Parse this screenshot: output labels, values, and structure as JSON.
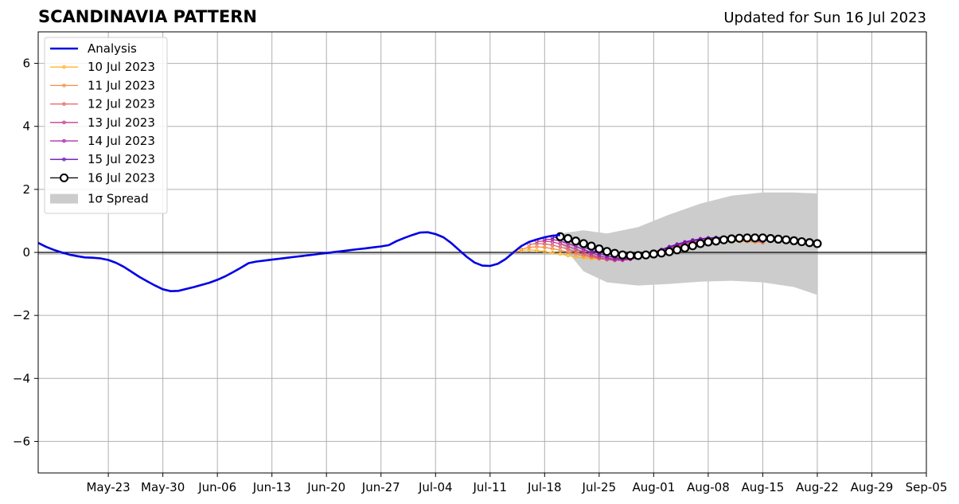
{
  "chart_data": {
    "type": "line",
    "title": "SCANDINAVIA PATTERN",
    "subtitle": "Updated for Sun 16 Jul 2023",
    "xlabel": "",
    "ylabel": "",
    "xlim": [
      "2023-05-14",
      "2023-09-05"
    ],
    "ylim": [
      -7,
      7
    ],
    "grid": true,
    "legend_position": "upper-left",
    "x_ticks": [
      "May-23",
      "May-30",
      "Jun-06",
      "Jun-13",
      "Jun-20",
      "Jun-27",
      "Jul-04",
      "Jul-11",
      "Jul-18",
      "Jul-25",
      "Aug-01",
      "Aug-08",
      "Aug-15",
      "Aug-22",
      "Aug-29",
      "Sep-05"
    ],
    "y_ticks": [
      "6",
      "4",
      "2",
      "0",
      "−2",
      "−4",
      "−6"
    ],
    "y_tick_values": [
      6,
      4,
      2,
      0,
      -2,
      -4,
      -6
    ],
    "analysis": {
      "name": "Analysis",
      "color": "#0000e6",
      "points": [
        [
          "2023-05-14",
          0.3
        ],
        [
          "2023-05-15",
          0.18
        ],
        [
          "2023-05-16",
          0.08
        ],
        [
          "2023-05-17",
          0.0
        ],
        [
          "2023-05-18",
          -0.07
        ],
        [
          "2023-05-19",
          -0.12
        ],
        [
          "2023-05-20",
          -0.16
        ],
        [
          "2023-05-21",
          -0.17
        ],
        [
          "2023-05-22",
          -0.19
        ],
        [
          "2023-05-23",
          -0.24
        ],
        [
          "2023-05-24",
          -0.33
        ],
        [
          "2023-05-25",
          -0.46
        ],
        [
          "2023-05-26",
          -0.62
        ],
        [
          "2023-05-27",
          -0.78
        ],
        [
          "2023-05-28",
          -0.92
        ],
        [
          "2023-05-29",
          -1.05
        ],
        [
          "2023-05-30",
          -1.17
        ],
        [
          "2023-05-31",
          -1.23
        ],
        [
          "2023-06-01",
          -1.22
        ],
        [
          "2023-06-02",
          -1.16
        ],
        [
          "2023-06-03",
          -1.1
        ],
        [
          "2023-06-04",
          -1.03
        ],
        [
          "2023-06-05",
          -0.96
        ],
        [
          "2023-06-06",
          -0.87
        ],
        [
          "2023-06-07",
          -0.76
        ],
        [
          "2023-06-08",
          -0.63
        ],
        [
          "2023-06-09",
          -0.49
        ],
        [
          "2023-06-10",
          -0.34
        ],
        [
          "2023-06-11",
          -0.29
        ],
        [
          "2023-06-12",
          -0.26
        ],
        [
          "2023-06-13",
          -0.23
        ],
        [
          "2023-06-14",
          -0.2
        ],
        [
          "2023-06-15",
          -0.17
        ],
        [
          "2023-06-16",
          -0.14
        ],
        [
          "2023-06-17",
          -0.11
        ],
        [
          "2023-06-18",
          -0.08
        ],
        [
          "2023-06-19",
          -0.05
        ],
        [
          "2023-06-20",
          -0.02
        ],
        [
          "2023-06-21",
          0.01
        ],
        [
          "2023-06-22",
          0.04
        ],
        [
          "2023-06-23",
          0.07
        ],
        [
          "2023-06-24",
          0.1
        ],
        [
          "2023-06-25",
          0.13
        ],
        [
          "2023-06-26",
          0.16
        ],
        [
          "2023-06-27",
          0.19
        ],
        [
          "2023-06-28",
          0.23
        ],
        [
          "2023-06-29",
          0.36
        ],
        [
          "2023-06-30",
          0.46
        ],
        [
          "2023-07-01",
          0.55
        ],
        [
          "2023-07-02",
          0.63
        ],
        [
          "2023-07-03",
          0.64
        ],
        [
          "2023-07-04",
          0.58
        ],
        [
          "2023-07-05",
          0.48
        ],
        [
          "2023-07-06",
          0.3
        ],
        [
          "2023-07-07",
          0.08
        ],
        [
          "2023-07-08",
          -0.14
        ],
        [
          "2023-07-09",
          -0.32
        ],
        [
          "2023-07-10",
          -0.42
        ],
        [
          "2023-07-11",
          -0.43
        ],
        [
          "2023-07-12",
          -0.36
        ],
        [
          "2023-07-13",
          -0.21
        ],
        [
          "2023-07-14",
          0.0
        ],
        [
          "2023-07-15",
          0.2
        ],
        [
          "2023-07-16",
          0.33
        ],
        [
          "2023-07-17",
          0.41
        ],
        [
          "2023-07-18",
          0.48
        ],
        [
          "2023-07-19",
          0.53
        ],
        [
          "2023-07-20",
          0.55
        ]
      ]
    },
    "forecasts": [
      {
        "name": "10 Jul 2023",
        "color": "#ffb52e",
        "start": "2023-07-14",
        "values": [
          0.0,
          0.06,
          0.08,
          0.06,
          0.03,
          -0.01,
          -0.05,
          -0.1,
          -0.14,
          -0.18,
          -0.2,
          -0.21,
          -0.21,
          -0.19,
          -0.16,
          -0.12,
          -0.07,
          -0.02,
          0.03,
          0.08,
          0.13,
          0.18,
          0.22,
          0.26,
          0.29,
          0.31,
          0.33,
          0.34,
          0.35,
          0.35,
          0.34,
          0.33,
          0.31
        ]
      },
      {
        "name": "11 Jul 2023",
        "color": "#f68d45",
        "start": "2023-07-15",
        "values": [
          0.1,
          0.16,
          0.18,
          0.16,
          0.12,
          0.07,
          0.01,
          -0.05,
          -0.11,
          -0.16,
          -0.2,
          -0.22,
          -0.22,
          -0.2,
          -0.17,
          -0.12,
          -0.06,
          0.0,
          0.06,
          0.12,
          0.18,
          0.23,
          0.28,
          0.32,
          0.35,
          0.37,
          0.38,
          0.38,
          0.37,
          0.35,
          0.33,
          0.3
        ]
      },
      {
        "name": "12 Jul 2023",
        "color": "#e36363",
        "start": "2023-07-16",
        "values": [
          0.25,
          0.28,
          0.27,
          0.23,
          0.17,
          0.1,
          0.02,
          -0.06,
          -0.13,
          -0.19,
          -0.23,
          -0.25,
          -0.24,
          -0.21,
          -0.16,
          -0.1,
          -0.03,
          0.04,
          0.11,
          0.18,
          0.24,
          0.3,
          0.35,
          0.39,
          0.42,
          0.43,
          0.43,
          0.42,
          0.4,
          0.37,
          0.34
        ]
      },
      {
        "name": "13 Jul 2023",
        "color": "#c8408a",
        "start": "2023-07-17",
        "values": [
          0.35,
          0.36,
          0.33,
          0.27,
          0.19,
          0.1,
          0.01,
          -0.08,
          -0.16,
          -0.22,
          -0.25,
          -0.25,
          -0.22,
          -0.17,
          -0.1,
          -0.02,
          0.06,
          0.14,
          0.21,
          0.28,
          0.34,
          0.39,
          0.43,
          0.46,
          0.47,
          0.47,
          0.46,
          0.44,
          0.41,
          0.38
        ]
      },
      {
        "name": "14 Jul 2023",
        "color": "#a222a6",
        "start": "2023-07-18",
        "values": [
          0.42,
          0.41,
          0.36,
          0.28,
          0.19,
          0.09,
          -0.01,
          -0.1,
          -0.17,
          -0.22,
          -0.23,
          -0.21,
          -0.16,
          -0.09,
          -0.01,
          0.08,
          0.16,
          0.24,
          0.31,
          0.37,
          0.42,
          0.45,
          0.47,
          0.48,
          0.48,
          0.47,
          0.45,
          0.42,
          0.39
        ]
      },
      {
        "name": "15 Jul 2023",
        "color": "#6a11b0",
        "start": "2023-07-19",
        "values": [
          0.48,
          0.45,
          0.38,
          0.29,
          0.18,
          0.07,
          -0.03,
          -0.11,
          -0.17,
          -0.2,
          -0.19,
          -0.15,
          -0.08,
          0.0,
          0.09,
          0.18,
          0.26,
          0.33,
          0.39,
          0.43,
          0.46,
          0.47,
          0.47,
          0.46,
          0.44,
          0.41,
          0.38,
          0.35
        ]
      },
      {
        "name": "16 Jul 2023",
        "color": "#000000",
        "start": "2023-07-20",
        "values": [
          0.5,
          0.44,
          0.36,
          0.28,
          0.2,
          0.11,
          0.03,
          -0.03,
          -0.08,
          -0.1,
          -0.1,
          -0.08,
          -0.05,
          -0.02,
          0.02,
          0.08,
          0.14,
          0.21,
          0.28,
          0.33,
          0.36,
          0.4,
          0.43,
          0.45,
          0.46,
          0.46,
          0.46,
          0.44,
          0.42,
          0.4,
          0.37,
          0.34,
          0.31,
          0.28
        ]
      }
    ],
    "spread": {
      "name": "1σ Spread",
      "color": "#cccccc",
      "dates": [
        "2023-07-20",
        "2023-07-23",
        "2023-07-26",
        "2023-07-30",
        "2023-08-03",
        "2023-08-07",
        "2023-08-11",
        "2023-08-15",
        "2023-08-19",
        "2023-08-22"
      ],
      "upper": [
        0.6,
        0.7,
        0.6,
        0.8,
        1.2,
        1.55,
        1.8,
        1.9,
        1.9,
        1.87
      ],
      "lower": [
        0.3,
        -0.6,
        -0.95,
        -1.05,
        -1.0,
        -0.93,
        -0.9,
        -0.95,
        -1.1,
        -1.35
      ]
    }
  }
}
